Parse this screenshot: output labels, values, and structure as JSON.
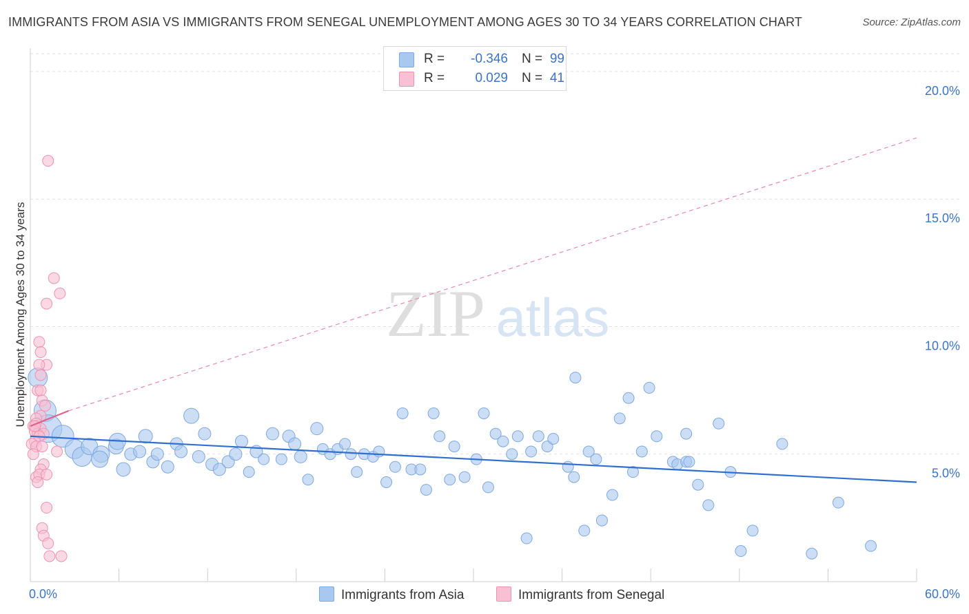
{
  "title": "IMMIGRANTS FROM ASIA VS IMMIGRANTS FROM SENEGAL UNEMPLOYMENT AMONG AGES 30 TO 34 YEARS CORRELATION CHART",
  "source": "Source: ZipAtlas.com",
  "watermark": {
    "zip": "ZIP",
    "atlas": "atlas"
  },
  "legend": [
    {
      "r_label": "R =",
      "r_value": "-0.346",
      "n_label": "N =",
      "n_value": "99",
      "color": "#a9c8f0",
      "border": "#7ea8e0"
    },
    {
      "r_label": "R =",
      "r_value": "0.029",
      "n_label": "N =",
      "n_value": "41",
      "color": "#f8c0d2",
      "border": "#ec93b2"
    }
  ],
  "bottom_legend": [
    {
      "label": "Immigrants from Asia",
      "color": "#a9c8f0",
      "border": "#7ea8e0"
    },
    {
      "label": "Immigrants from Senegal",
      "color": "#f8c0d2",
      "border": "#ec93b2"
    }
  ],
  "chart_data": {
    "type": "scatter",
    "title": "IMMIGRANTS FROM ASIA VS IMMIGRANTS FROM SENEGAL UNEMPLOYMENT AMONG AGES 30 TO 34 YEARS CORRELATION CHART",
    "xlabel": "",
    "ylabel": "Unemployment Among Ages 30 to 34 years",
    "xlim": [
      0,
      60
    ],
    "ylim": [
      0,
      20.7
    ],
    "x_tick_labels": [
      "0.0%",
      "60.0%"
    ],
    "y_ticks": [
      5,
      10,
      15,
      20
    ],
    "y_tick_labels": [
      "5.0%",
      "10.0%",
      "15.0%",
      "20.0%"
    ],
    "grid": "horizontal dashed",
    "legend_position": "top-center",
    "series": [
      {
        "name": "Immigrants from Asia",
        "color": "#7ea8e0",
        "fill": "#a9c8f0",
        "trend": {
          "x": [
            0,
            60
          ],
          "y": [
            5.7,
            3.9
          ]
        },
        "points": [
          [
            0.5,
            8.0,
            14
          ],
          [
            1.0,
            6.7,
            16
          ],
          [
            1.2,
            6.0,
            20
          ],
          [
            2.2,
            5.7,
            16
          ],
          [
            3.0,
            5.2,
            14
          ],
          [
            3.5,
            4.9,
            14
          ],
          [
            4.0,
            5.3,
            12
          ],
          [
            4.8,
            5.0,
            12
          ],
          [
            4.7,
            4.8,
            12
          ],
          [
            5.8,
            5.3,
            11
          ],
          [
            5.9,
            5.5,
            12
          ],
          [
            6.3,
            4.4,
            10
          ],
          [
            6.8,
            5.0,
            9
          ],
          [
            7.4,
            5.1,
            9
          ],
          [
            7.8,
            5.7,
            10
          ],
          [
            8.3,
            4.7,
            9
          ],
          [
            8.6,
            5.0,
            9
          ],
          [
            9.3,
            4.5,
            9
          ],
          [
            9.9,
            5.4,
            9
          ],
          [
            10.2,
            5.1,
            9
          ],
          [
            10.9,
            6.5,
            11
          ],
          [
            11.4,
            4.9,
            9
          ],
          [
            11.8,
            5.8,
            9
          ],
          [
            12.3,
            4.6,
            9
          ],
          [
            12.8,
            4.4,
            9
          ],
          [
            13.4,
            4.7,
            9
          ],
          [
            13.9,
            5.0,
            9
          ],
          [
            14.3,
            5.5,
            9
          ],
          [
            14.8,
            4.3,
            8
          ],
          [
            15.3,
            5.1,
            9
          ],
          [
            15.8,
            4.8,
            8
          ],
          [
            16.4,
            5.8,
            9
          ],
          [
            17.0,
            4.8,
            8
          ],
          [
            17.5,
            5.7,
            9
          ],
          [
            17.9,
            5.4,
            9
          ],
          [
            18.3,
            4.9,
            9
          ],
          [
            18.8,
            4.0,
            8
          ],
          [
            19.4,
            6.0,
            9
          ],
          [
            19.8,
            5.2,
            8
          ],
          [
            20.3,
            5.0,
            8
          ],
          [
            20.8,
            5.2,
            8
          ],
          [
            21.3,
            5.4,
            8
          ],
          [
            21.7,
            5.0,
            8
          ],
          [
            22.1,
            4.3,
            8
          ],
          [
            22.6,
            5.0,
            8
          ],
          [
            23.2,
            4.9,
            8
          ],
          [
            23.6,
            5.1,
            8
          ],
          [
            24.1,
            3.9,
            8
          ],
          [
            24.7,
            4.5,
            8
          ],
          [
            25.2,
            6.6,
            8
          ],
          [
            25.8,
            4.4,
            8
          ],
          [
            26.4,
            4.4,
            8
          ],
          [
            26.8,
            3.6,
            8
          ],
          [
            27.3,
            6.6,
            8
          ],
          [
            27.7,
            5.7,
            8
          ],
          [
            28.4,
            4.0,
            8
          ],
          [
            28.7,
            5.3,
            8
          ],
          [
            29.4,
            4.1,
            8
          ],
          [
            30.2,
            4.8,
            8
          ],
          [
            30.7,
            6.6,
            8
          ],
          [
            31.0,
            3.7,
            8
          ],
          [
            31.5,
            5.8,
            8
          ],
          [
            32.0,
            5.5,
            8
          ],
          [
            32.6,
            5.0,
            8
          ],
          [
            33.0,
            5.7,
            8
          ],
          [
            33.6,
            1.7,
            8
          ],
          [
            33.9,
            5.1,
            8
          ],
          [
            34.4,
            5.7,
            8
          ],
          [
            35.0,
            5.3,
            8
          ],
          [
            35.4,
            5.6,
            8
          ],
          [
            36.4,
            4.5,
            8
          ],
          [
            36.8,
            4.1,
            8
          ],
          [
            36.9,
            8.0,
            8
          ],
          [
            37.5,
            2.0,
            8
          ],
          [
            37.8,
            5.1,
            8
          ],
          [
            38.3,
            4.8,
            8
          ],
          [
            38.7,
            2.4,
            8
          ],
          [
            39.4,
            3.4,
            8
          ],
          [
            39.9,
            6.4,
            8
          ],
          [
            40.5,
            7.2,
            8
          ],
          [
            40.8,
            4.3,
            8
          ],
          [
            41.4,
            5.1,
            8
          ],
          [
            41.9,
            7.6,
            8
          ],
          [
            42.4,
            5.7,
            8
          ],
          [
            43.5,
            4.7,
            8
          ],
          [
            43.8,
            4.6,
            8
          ],
          [
            44.4,
            4.7,
            8
          ],
          [
            44.4,
            5.8,
            8
          ],
          [
            45.2,
            3.8,
            8
          ],
          [
            45.9,
            3.0,
            8
          ],
          [
            46.6,
            6.2,
            8
          ],
          [
            47.4,
            4.3,
            8
          ],
          [
            48.1,
            1.2,
            8
          ],
          [
            48.9,
            2.0,
            8
          ],
          [
            50.9,
            5.4,
            8
          ],
          [
            52.9,
            1.1,
            8
          ],
          [
            54.7,
            3.1,
            8
          ],
          [
            56.9,
            1.4,
            8
          ],
          [
            44.6,
            4.7,
            8
          ]
        ]
      },
      {
        "name": "Immigrants from Senegal",
        "color": "#ec93b2",
        "fill": "#f8c0d2",
        "trend_solid": {
          "x": [
            0,
            2.6
          ],
          "y": [
            6.1,
            6.7
          ]
        },
        "trend_dashed": {
          "x": [
            2.6,
            60
          ],
          "y": [
            6.7,
            17.4
          ]
        },
        "points": [
          [
            1.2,
            16.5,
            8
          ],
          [
            1.6,
            11.9,
            8
          ],
          [
            2.0,
            11.3,
            8
          ],
          [
            1.1,
            10.9,
            8
          ],
          [
            0.6,
            9.4,
            8
          ],
          [
            0.7,
            9.0,
            8
          ],
          [
            1.1,
            8.5,
            8
          ],
          [
            0.6,
            8.5,
            8
          ],
          [
            0.7,
            8.1,
            8
          ],
          [
            0.5,
            7.5,
            8
          ],
          [
            0.7,
            7.5,
            8
          ],
          [
            0.8,
            7.1,
            8
          ],
          [
            1.0,
            6.9,
            8
          ],
          [
            0.7,
            6.5,
            8
          ],
          [
            0.4,
            6.4,
            8
          ],
          [
            0.2,
            6.1,
            8
          ],
          [
            0.4,
            6.2,
            8
          ],
          [
            0.7,
            6.0,
            8
          ],
          [
            0.3,
            5.9,
            8
          ],
          [
            0.5,
            5.8,
            8
          ],
          [
            0.9,
            5.8,
            8
          ],
          [
            0.6,
            5.7,
            8
          ],
          [
            0.3,
            5.5,
            8
          ],
          [
            0.1,
            5.4,
            8
          ],
          [
            0.4,
            5.3,
            8
          ],
          [
            0.8,
            5.3,
            8
          ],
          [
            0.2,
            5.0,
            8
          ],
          [
            0.9,
            4.6,
            8
          ],
          [
            0.7,
            4.4,
            8
          ],
          [
            0.4,
            4.1,
            8
          ],
          [
            0.6,
            4.2,
            8
          ],
          [
            1.1,
            4.2,
            8
          ],
          [
            0.5,
            3.9,
            8
          ],
          [
            1.1,
            2.9,
            8
          ],
          [
            0.8,
            2.1,
            8
          ],
          [
            0.9,
            1.8,
            8
          ],
          [
            1.2,
            1.5,
            8
          ],
          [
            1.3,
            1.0,
            8
          ],
          [
            2.1,
            1.0,
            8
          ],
          [
            1.8,
            5.1,
            8
          ],
          [
            0.3,
            6.1,
            8
          ]
        ]
      }
    ]
  }
}
